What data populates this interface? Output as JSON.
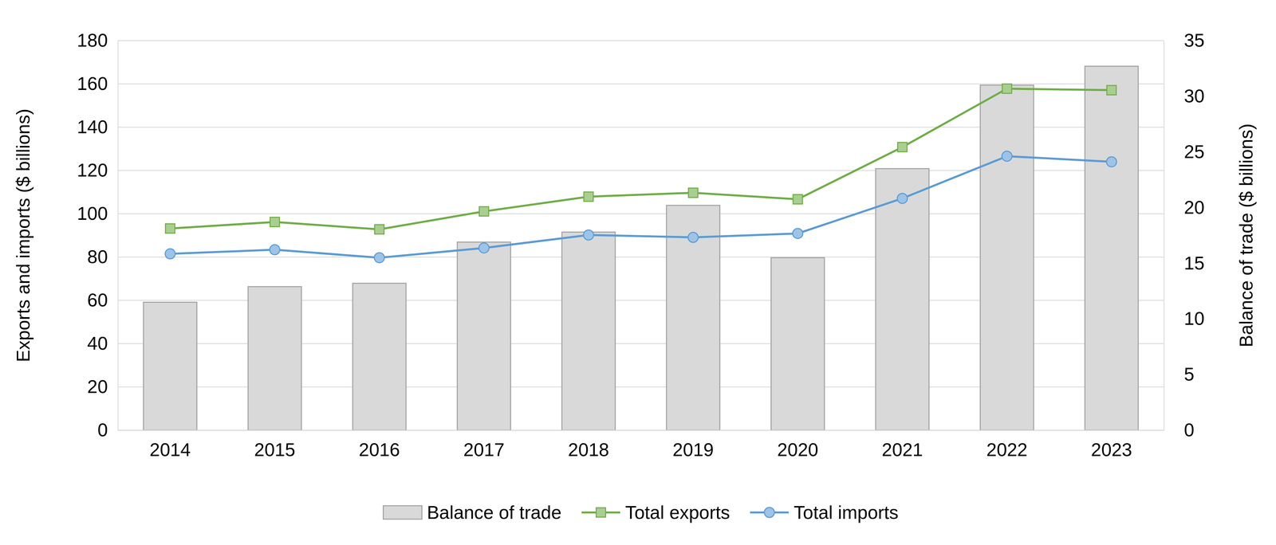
{
  "chart_data": {
    "type": "bar",
    "categories": [
      "2014",
      "2015",
      "2016",
      "2017",
      "2018",
      "2019",
      "2020",
      "2021",
      "2022",
      "2023"
    ],
    "y_label": "Exports and imports ($ billions)",
    "y2_label": "Balance of trade ($ billions)",
    "ylim": [
      0,
      180
    ],
    "yticks": [
      0,
      20,
      40,
      60,
      80,
      100,
      120,
      140,
      160,
      180
    ],
    "y2lim": [
      0,
      35
    ],
    "y2ticks": [
      0,
      5,
      10,
      15,
      20,
      25,
      30,
      35
    ],
    "grid": true,
    "legend": "bottom",
    "series": [
      {
        "name": "Balance of trade",
        "type": "bar",
        "axis": "y2",
        "color": "#d9d9d9",
        "values": [
          11.5,
          12.9,
          13.2,
          16.9,
          17.8,
          20.2,
          15.5,
          23.5,
          31.0,
          32.7
        ]
      },
      {
        "name": "Total exports",
        "type": "line",
        "color": "#70ad47",
        "marker": "square",
        "values": [
          93.2,
          96.2,
          92.8,
          101.1,
          107.9,
          109.7,
          106.7,
          130.8,
          157.8,
          157.1
        ]
      },
      {
        "name": "Total imports",
        "type": "line",
        "color": "#5b9bd5",
        "marker": "circle",
        "values": [
          81.5,
          83.4,
          79.7,
          84.2,
          90.2,
          89.1,
          90.9,
          107.1,
          126.6,
          124.0
        ]
      }
    ]
  }
}
